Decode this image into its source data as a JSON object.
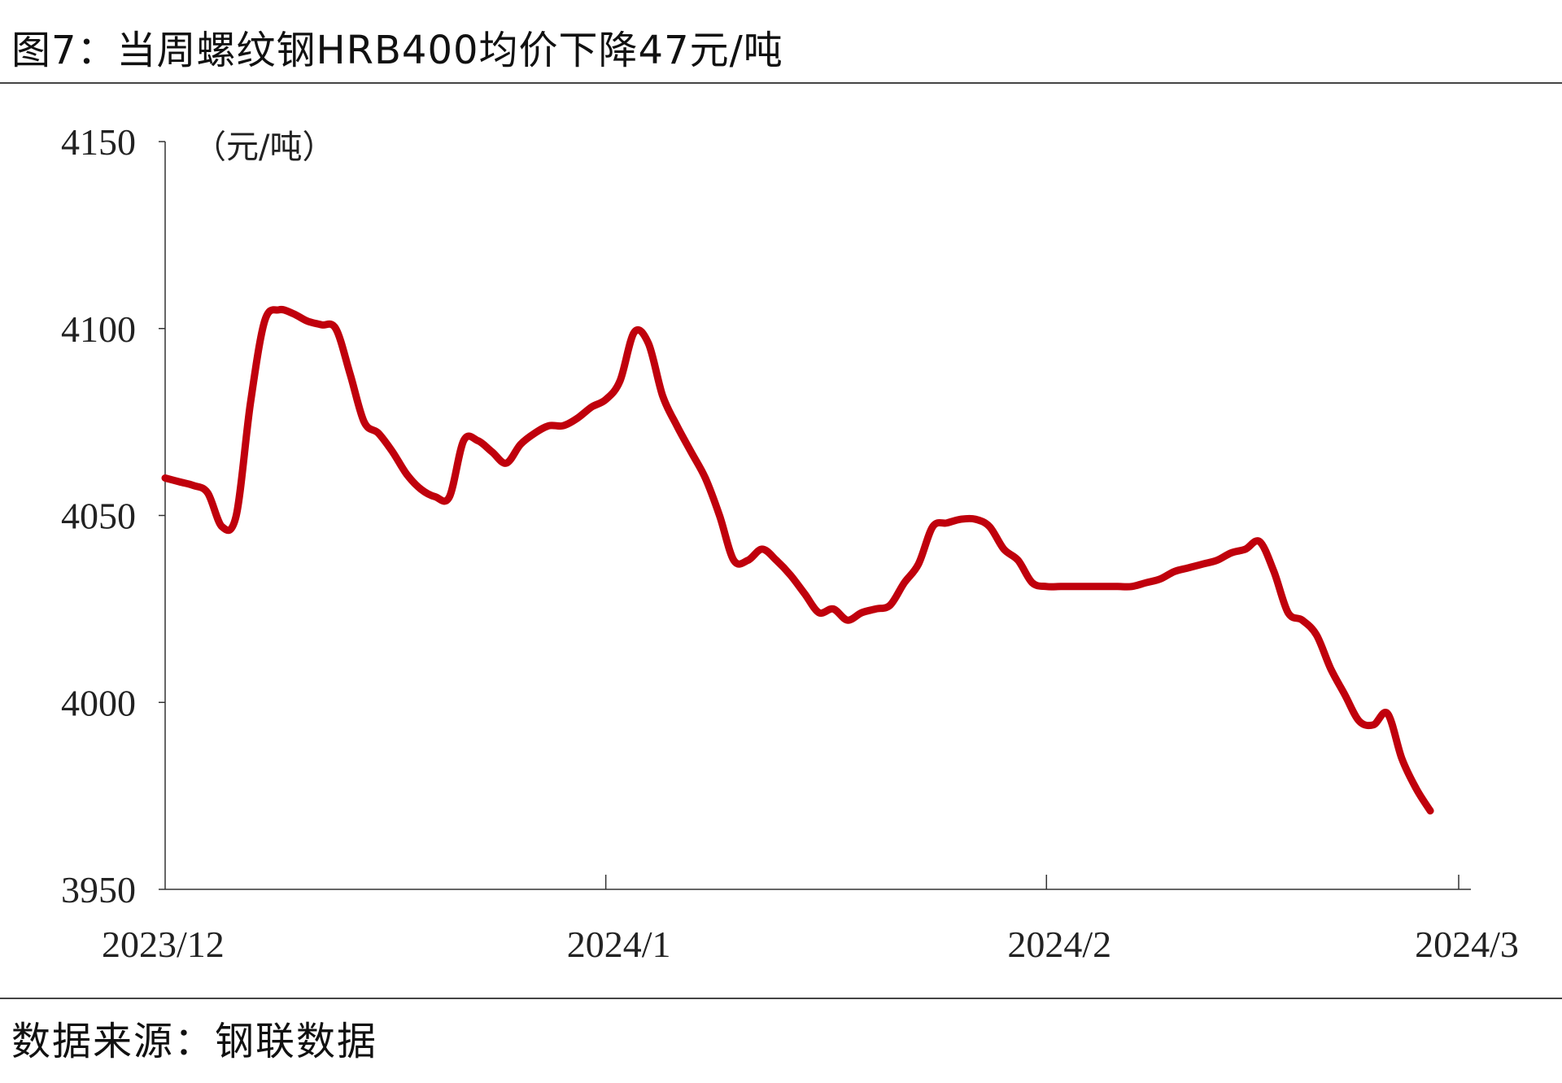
{
  "title": "图7：当周螺纹钢HRB400均价下降47元/吨",
  "source": "数据来源：钢联数据",
  "chart_data": {
    "type": "line",
    "unit_label": "（元/吨）",
    "ylim": [
      3950,
      4150
    ],
    "y_ticks": [
      3950,
      4000,
      4050,
      4100,
      4150
    ],
    "x_range": [
      "2023-12-01",
      "2024-03-01"
    ],
    "x_ticks": [
      {
        "date": "2023-12-01",
        "label": "2023/12"
      },
      {
        "date": "2024-01-01",
        "label": "2024/1"
      },
      {
        "date": "2024-02-01",
        "label": "2024/2"
      },
      {
        "date": "2024-03-01",
        "label": "2024/3"
      }
    ],
    "grid": false,
    "legend": "none",
    "line_color": "#C0000C",
    "series": [
      {
        "points": [
          [
            "2023-12-01",
            4060
          ],
          [
            "2023-12-02",
            4059
          ],
          [
            "2023-12-03",
            4058
          ],
          [
            "2023-12-04",
            4056
          ],
          [
            "2023-12-05",
            4047
          ],
          [
            "2023-12-06",
            4050
          ],
          [
            "2023-12-07",
            4080
          ],
          [
            "2023-12-08",
            4102
          ],
          [
            "2023-12-09",
            4105
          ],
          [
            "2023-12-10",
            4104
          ],
          [
            "2023-12-11",
            4102
          ],
          [
            "2023-12-12",
            4101
          ],
          [
            "2023-12-13",
            4100
          ],
          [
            "2023-12-14",
            4088
          ],
          [
            "2023-12-15",
            4075
          ],
          [
            "2023-12-16",
            4072
          ],
          [
            "2023-12-17",
            4067
          ],
          [
            "2023-12-18",
            4061
          ],
          [
            "2023-12-19",
            4057
          ],
          [
            "2023-12-20",
            4055
          ],
          [
            "2023-12-21",
            4055
          ],
          [
            "2023-12-22",
            4070
          ],
          [
            "2023-12-23",
            4070
          ],
          [
            "2023-12-24",
            4067
          ],
          [
            "2023-12-25",
            4064
          ],
          [
            "2023-12-26",
            4069
          ],
          [
            "2023-12-27",
            4072
          ],
          [
            "2023-12-28",
            4074
          ],
          [
            "2023-12-29",
            4074
          ],
          [
            "2023-12-30",
            4076
          ],
          [
            "2023-12-31",
            4079
          ],
          [
            "2024-01-01",
            4081
          ],
          [
            "2024-01-02",
            4086
          ],
          [
            "2024-01-03",
            4099
          ],
          [
            "2024-01-04",
            4096
          ],
          [
            "2024-01-05",
            4082
          ],
          [
            "2024-01-06",
            4074
          ],
          [
            "2024-01-07",
            4067
          ],
          [
            "2024-01-08",
            4060
          ],
          [
            "2024-01-09",
            4050
          ],
          [
            "2024-01-10",
            4038
          ],
          [
            "2024-01-11",
            4038
          ],
          [
            "2024-01-12",
            4041
          ],
          [
            "2024-01-13",
            4038
          ],
          [
            "2024-01-14",
            4034
          ],
          [
            "2024-01-15",
            4029
          ],
          [
            "2024-01-16",
            4024
          ],
          [
            "2024-01-17",
            4025
          ],
          [
            "2024-01-18",
            4022
          ],
          [
            "2024-01-19",
            4024
          ],
          [
            "2024-01-20",
            4025
          ],
          [
            "2024-01-21",
            4026
          ],
          [
            "2024-01-22",
            4032
          ],
          [
            "2024-01-23",
            4037
          ],
          [
            "2024-01-24",
            4047
          ],
          [
            "2024-01-25",
            4048
          ],
          [
            "2024-01-26",
            4049
          ],
          [
            "2024-01-27",
            4049
          ],
          [
            "2024-01-28",
            4047
          ],
          [
            "2024-01-29",
            4041
          ],
          [
            "2024-01-30",
            4038
          ],
          [
            "2024-01-31",
            4032
          ],
          [
            "2024-02-01",
            4031
          ],
          [
            "2024-02-02",
            4031
          ],
          [
            "2024-02-03",
            4031
          ],
          [
            "2024-02-04",
            4031
          ],
          [
            "2024-02-05",
            4031
          ],
          [
            "2024-02-06",
            4031
          ],
          [
            "2024-02-07",
            4031
          ],
          [
            "2024-02-08",
            4032
          ],
          [
            "2024-02-09",
            4033
          ],
          [
            "2024-02-10",
            4035
          ],
          [
            "2024-02-11",
            4036
          ],
          [
            "2024-02-12",
            4037
          ],
          [
            "2024-02-13",
            4038
          ],
          [
            "2024-02-14",
            4040
          ],
          [
            "2024-02-15",
            4041
          ],
          [
            "2024-02-16",
            4043
          ],
          [
            "2024-02-17",
            4035
          ],
          [
            "2024-02-18",
            4024
          ],
          [
            "2024-02-19",
            4022
          ],
          [
            "2024-02-20",
            4018
          ],
          [
            "2024-02-21",
            4009
          ],
          [
            "2024-02-22",
            4002
          ],
          [
            "2024-02-23",
            3995
          ],
          [
            "2024-02-24",
            3994
          ],
          [
            "2024-02-25",
            3997
          ],
          [
            "2024-02-26",
            3985
          ],
          [
            "2024-02-27",
            3977
          ],
          [
            "2024-02-28",
            3971
          ]
        ]
      }
    ]
  }
}
